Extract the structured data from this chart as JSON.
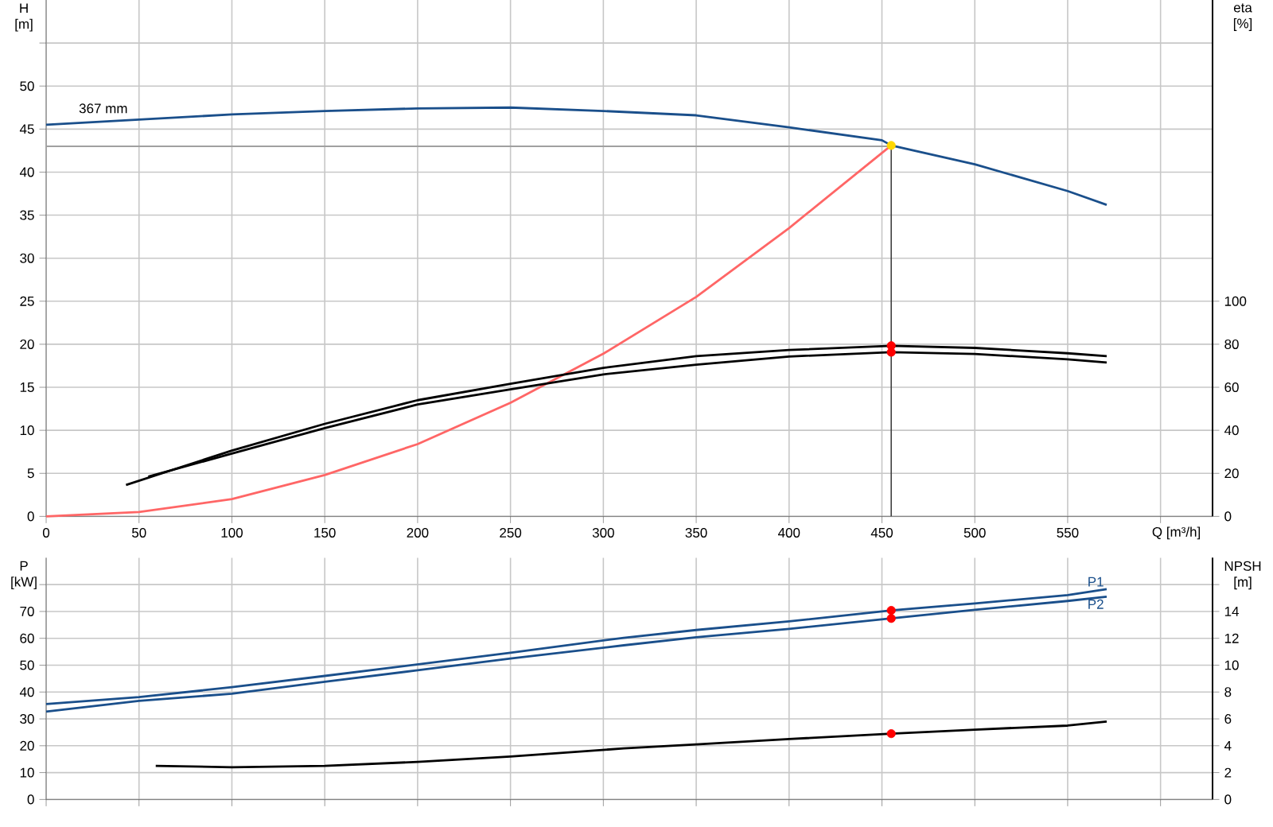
{
  "chart_data": [
    {
      "type": "line",
      "xlabel": "Q [m³/h]",
      "ylabel": "H [m]",
      "y2label": "eta [%]",
      "grid": true,
      "xlim": [
        0,
        628
      ],
      "xticks": [
        0,
        50,
        100,
        150,
        200,
        250,
        300,
        350,
        400,
        450,
        500,
        550,
        {
          "value": 600,
          "label": null
        }
      ],
      "ylim": [
        0,
        60
      ],
      "yticks": [
        0,
        5,
        10,
        15,
        20,
        25,
        30,
        35,
        40,
        45,
        50,
        {
          "value": 55,
          "label": null
        }
      ],
      "y2lim": [
        0,
        240
      ],
      "y2ticks": [
        0,
        20,
        40,
        60,
        80,
        100
      ],
      "annotations": [
        "367 mm"
      ],
      "ref_lines": [
        {
          "axis": "y",
          "value": 43,
          "color": "#a0a0a0"
        },
        {
          "axis": "x",
          "value": 455,
          "color": "#404040"
        }
      ],
      "series": [
        {
          "color": "#1a4f8b",
          "x": [
            0,
            50,
            100,
            150,
            200,
            250,
            300,
            350,
            400,
            450,
            455,
            500,
            550,
            571
          ],
          "values": [
            45.5,
            46.1,
            46.7,
            47.1,
            47.4,
            47.5,
            47.1,
            46.6,
            45.2,
            43.7,
            43.1,
            40.9,
            37.8,
            36.2
          ]
        },
        {
          "color": "#ff6666",
          "x": [
            0,
            50,
            100,
            150,
            200,
            250,
            300,
            350,
            400,
            455
          ],
          "values": [
            0,
            0.5,
            2.0,
            4.8,
            8.4,
            13.2,
            18.9,
            25.5,
            33.5,
            43.1
          ]
        },
        {
          "color": "#000000",
          "axis": "y2",
          "x": [
            43,
            100,
            150,
            200,
            250,
            300,
            350,
            400,
            455,
            500,
            550,
            571
          ],
          "values": [
            14.6,
            30.6,
            43,
            54,
            61.6,
            69,
            74.5,
            77.3,
            79.3,
            78.3,
            75.8,
            74.5
          ]
        },
        {
          "color": "#000000",
          "axis": "y2",
          "x": [
            55,
            100,
            150,
            200,
            250,
            300,
            350,
            400,
            455,
            500,
            550,
            571
          ],
          "values": [
            18.5,
            29.2,
            41,
            52,
            59,
            66,
            70.5,
            74.3,
            76.3,
            75.5,
            73,
            71.5
          ]
        },
        {
          "type": "scatter",
          "color": "#ffd700",
          "x": [
            455
          ],
          "values": [
            43.1
          ]
        },
        {
          "type": "scatter",
          "color": "#ff0000",
          "axis": "y2",
          "x": [
            455,
            455
          ],
          "values": [
            79.3,
            76.3
          ]
        }
      ]
    },
    {
      "type": "line",
      "ylabel": "P [kW]",
      "y2label": "NPSH [m]",
      "grid": true,
      "tick_labels": "y",
      "xlim": [
        0,
        628
      ],
      "xticks": [
        0,
        50,
        100,
        150,
        200,
        250,
        300,
        350,
        400,
        450,
        500,
        550,
        600
      ],
      "ylim": [
        0,
        90
      ],
      "yticks": [
        0,
        10,
        20,
        30,
        40,
        50,
        60,
        70,
        {
          "value": 80,
          "label": null
        }
      ],
      "y2lim": [
        0,
        18
      ],
      "y2ticks": [
        0,
        2,
        4,
        6,
        8,
        10,
        12,
        14,
        {
          "value": 16,
          "label": null
        }
      ],
      "series": [
        {
          "name": "P1",
          "color": "#1a4f8b",
          "x": [
            0,
            50,
            100,
            150,
            200,
            250,
            311,
            350,
            400,
            455,
            500,
            550,
            571
          ],
          "values": [
            35.5,
            38.1,
            41.8,
            46,
            50.3,
            54.6,
            60.2,
            63.1,
            66.3,
            70.4,
            73,
            76.1,
            78.3
          ]
        },
        {
          "name": "P2",
          "color": "#1a4f8b",
          "x": [
            0,
            50,
            100,
            150,
            200,
            250,
            311,
            350,
            400,
            455,
            500,
            550,
            571
          ],
          "values": [
            32.7,
            36.7,
            39.4,
            43.8,
            48.1,
            52.5,
            57.4,
            60.4,
            63.5,
            67.4,
            70.6,
            73.9,
            75.5
          ]
        },
        {
          "color": "#000000",
          "axis": "y2",
          "x": [
            59,
            100,
            150,
            200,
            250,
            311,
            350,
            400,
            455,
            500,
            550,
            571
          ],
          "values": [
            2.5,
            2.4,
            2.5,
            2.8,
            3.2,
            3.8,
            4.1,
            4.5,
            4.9,
            5.2,
            5.5,
            5.8
          ]
        },
        {
          "type": "scatter",
          "color": "#ff0000",
          "x": [
            455,
            455
          ],
          "values": [
            70.4,
            67.4
          ]
        },
        {
          "type": "scatter",
          "color": "#ff0000",
          "axis": "y2",
          "x": [
            455
          ],
          "values": [
            4.9
          ]
        }
      ]
    }
  ]
}
